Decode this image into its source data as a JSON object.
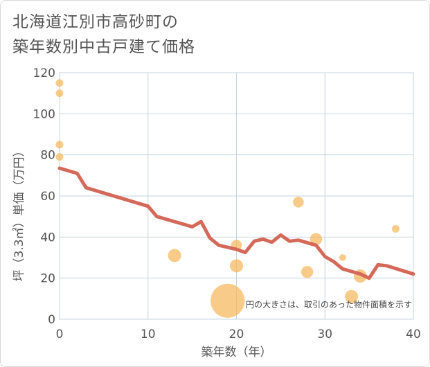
{
  "title": {
    "line1": "北海道江別市高砂町の",
    "line2": "築年数別中古戸建て価格"
  },
  "chart_data": {
    "type": "scatter",
    "title": "北海道江別市高砂町の築年数別中古戸建て価格",
    "xlabel": "築年数（年）",
    "ylabel": "坪（3.3㎡）単価（万円）",
    "xlim": [
      0,
      40
    ],
    "ylim": [
      0,
      120
    ],
    "xticks": [
      0,
      10,
      20,
      30,
      40
    ],
    "yticks": [
      0,
      20,
      40,
      60,
      80,
      100,
      120
    ],
    "grid": true,
    "note": "円の大きさは、取引のあった物件面積を示す",
    "colors": {
      "bubble": "#f5b75a",
      "line": "#d4695a",
      "grid": "#c5d3e0",
      "text": "#555555"
    },
    "bubbles": [
      {
        "x": 0,
        "y": 115,
        "size": 1
      },
      {
        "x": 0,
        "y": 110,
        "size": 1
      },
      {
        "x": 0,
        "y": 85,
        "size": 1
      },
      {
        "x": 0,
        "y": 79,
        "size": 1
      },
      {
        "x": 13,
        "y": 31,
        "size": 3
      },
      {
        "x": 19,
        "y": 9,
        "size": 20
      },
      {
        "x": 20,
        "y": 36,
        "size": 2
      },
      {
        "x": 20,
        "y": 26,
        "size": 3
      },
      {
        "x": 27,
        "y": 57,
        "size": 2
      },
      {
        "x": 28,
        "y": 23,
        "size": 2.5
      },
      {
        "x": 29,
        "y": 39,
        "size": 2.5
      },
      {
        "x": 32,
        "y": 30,
        "size": 0.8
      },
      {
        "x": 33,
        "y": 11,
        "size": 3
      },
      {
        "x": 34,
        "y": 21,
        "size": 3
      },
      {
        "x": 38,
        "y": 44,
        "size": 1
      }
    ],
    "series": [
      {
        "name": "trend",
        "x": [
          0,
          2,
          3,
          10,
          11,
          15,
          16,
          17,
          18,
          20,
          21,
          22,
          23,
          24,
          25,
          26,
          27,
          29,
          30,
          31,
          32,
          34,
          35,
          36,
          37,
          40
        ],
        "values": [
          73.5,
          71,
          64,
          55,
          50,
          45,
          47.5,
          39.5,
          36,
          34,
          32.5,
          38,
          39,
          37.5,
          41,
          38,
          38.5,
          36,
          30.5,
          28,
          24.5,
          22,
          20,
          26.5,
          26,
          22
        ]
      }
    ]
  }
}
